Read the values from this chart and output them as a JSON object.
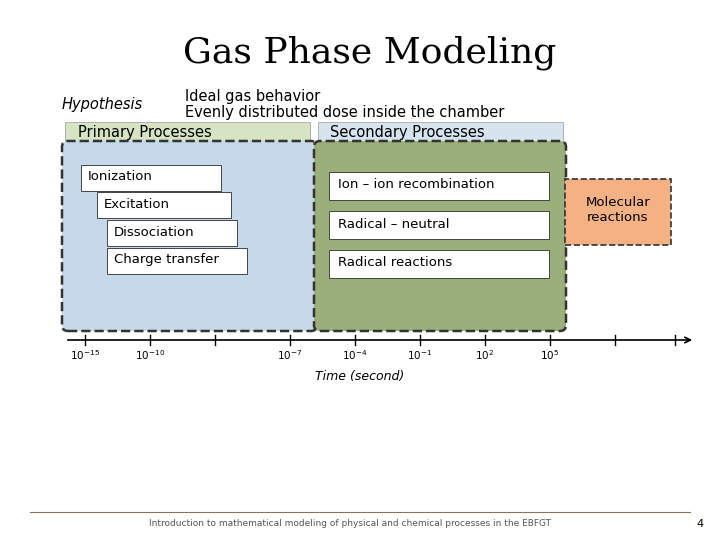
{
  "title": "Gas Phase Modeling",
  "hypothesis_label": "Hypothesis",
  "hypothesis_line1": "Ideal gas behavior",
  "hypothesis_line2": "Evenly distributed dose inside the chamber",
  "primary_label": "Primary Processes",
  "secondary_label": "Secondary Processes",
  "primary_items": [
    "Ionization",
    "Excitation",
    "Dissociation",
    "Charge transfer"
  ],
  "secondary_items": [
    "Ion – ion recombination",
    "Radical – neutral",
    "Radical reactions"
  ],
  "molecular_label": "Molecular\nreactions",
  "time_label": "Time (second)",
  "footer": "Introduction to mathematical modeling of physical and chemical processes in the EBFGT",
  "page_number": "4",
  "bg_color": "#ffffff",
  "primary_header_bg": "#d6e4c4",
  "secondary_header_bg": "#d6e4f0",
  "primary_dashed_bg": "#c5d9ea",
  "secondary_dashed_bg": "#9aaf7a",
  "molecular_bg": "#f4b183",
  "box_color": "#ffffff",
  "title_fontsize": 26,
  "body_fontsize": 10.5,
  "item_fontsize": 9.5,
  "small_fontsize": 7.5,
  "footer_fontsize": 6.5
}
